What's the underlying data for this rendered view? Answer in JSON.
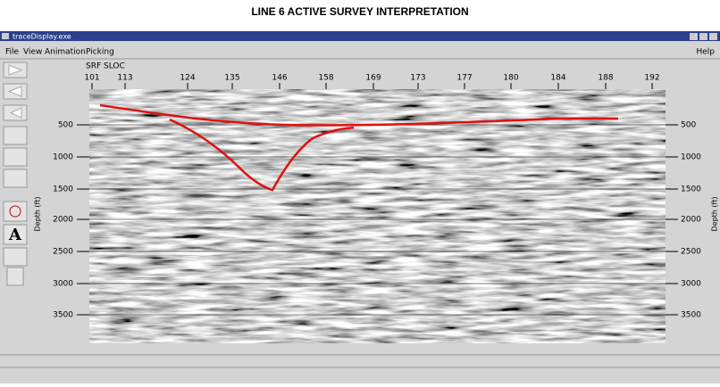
{
  "header": {
    "title": "LINE 6 ACTIVE SURVEY INTERPRETATION"
  },
  "window": {
    "title": "traceDisplay.exe"
  },
  "menu": {
    "items": [
      "File",
      "View",
      "Animation",
      "Picking"
    ],
    "help": "Help"
  },
  "toolbar": {
    "text_tool": "A"
  },
  "plot": {
    "top_axis_label": "SRF SLOC",
    "top_ticks": [
      101,
      113,
      124,
      135,
      146,
      158,
      169,
      173,
      177,
      180,
      184,
      188,
      192
    ],
    "depth_ticks": [
      500,
      1000,
      1500,
      2000,
      2500,
      3000,
      3500
    ],
    "left_axis_label": "Depth (ft)",
    "right_axis_label": "Depth (ft)"
  }
}
